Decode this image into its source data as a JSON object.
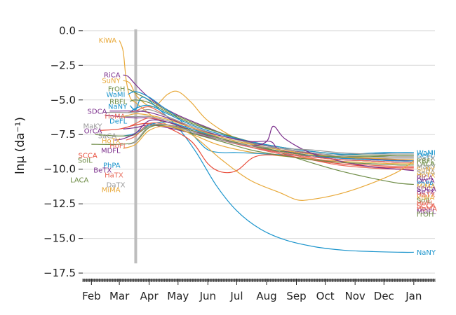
{
  "chart_data": {
    "type": "line",
    "title": "",
    "ylabel": "lnμ (da⁻¹)",
    "xlabel": "",
    "xlim": [
      "2020-01-23",
      "2021-01-23"
    ],
    "ylim": [
      -17.9,
      0.7
    ],
    "yticks": [
      0.0,
      -2.5,
      -5.0,
      -7.5,
      -10.0,
      -12.5,
      -15.0,
      -17.5
    ],
    "ytick_labels": [
      "0.0",
      "−2.5",
      "−5.0",
      "−7.5",
      "−10.0",
      "−12.5",
      "−15.0",
      "−17.5"
    ],
    "xticks": [
      "2020-02-01",
      "2020-03-01",
      "2020-04-01",
      "2020-05-01",
      "2020-06-01",
      "2020-07-01",
      "2020-08-01",
      "2020-09-01",
      "2020-10-01",
      "2020-11-01",
      "2020-12-01",
      "2021-01-01"
    ],
    "xtick_labels": [
      "Feb",
      "Mar",
      "Apr",
      "May",
      "Jun",
      "Jul",
      "Aug",
      "Sep",
      "Oct",
      "Nov",
      "Dec",
      "Jan"
    ],
    "grid": "horizontal",
    "vertical_marker": "2020-03-18",
    "series": [
      {
        "name": "KiWA",
        "color": "#e8a838",
        "x": [
          "2020-03-01",
          "2020-03-05",
          "2020-03-08",
          "2020-03-12",
          "2020-03-18",
          "2020-03-25",
          "2020-04-05",
          "2020-04-20",
          "2020-05-10",
          "2020-06-10",
          "2020-07-10",
          "2020-08-10",
          "2020-09-10",
          "2020-10-10",
          "2020-11-10",
          "2020-12-10",
          "2021-01-01"
        ],
        "y": [
          -0.7,
          -1.5,
          -3.5,
          -4.8,
          -5.2,
          -5.6,
          -6.2,
          -6.8,
          -7.3,
          -8.2,
          -8.7,
          -9.0,
          -9.2,
          -9.4,
          -9.5,
          -9.6,
          -9.6
        ]
      },
      {
        "name": "RiCA",
        "color": "#7b2f8c",
        "x": [
          "2020-03-05",
          "2020-03-10",
          "2020-03-18",
          "2020-03-28",
          "2020-04-10",
          "2020-05-01",
          "2020-06-01",
          "2020-07-01",
          "2020-08-01",
          "2020-09-01",
          "2020-10-01",
          "2020-11-01",
          "2020-12-01",
          "2021-01-01"
        ],
        "y": [
          -3.2,
          -3.3,
          -3.9,
          -4.6,
          -5.3,
          -6.1,
          -7.0,
          -7.8,
          -8.3,
          -8.7,
          -9.0,
          -9.2,
          -9.3,
          -9.4
        ]
      },
      {
        "name": "SuNY",
        "color": "#e8a838",
        "x": [
          "2020-03-05",
          "2020-03-12",
          "2020-03-20",
          "2020-04-05",
          "2020-04-20",
          "2020-05-01",
          "2020-05-15",
          "2020-06-01",
          "2020-07-01",
          "2020-08-01",
          "2020-09-01",
          "2020-10-01",
          "2020-11-01",
          "2020-12-01",
          "2021-01-01"
        ],
        "y": [
          -3.6,
          -3.8,
          -4.8,
          -5.5,
          -4.6,
          -4.4,
          -5.2,
          -6.5,
          -7.8,
          -8.5,
          -8.9,
          -9.1,
          -9.2,
          -9.2,
          -9.2
        ]
      },
      {
        "name": "FrOH",
        "color": "#6e8c46",
        "x": [
          "2020-03-10",
          "2020-03-18",
          "2020-04-01",
          "2020-04-20",
          "2020-05-15",
          "2020-06-15",
          "2020-07-15",
          "2020-08-15",
          "2020-09-15",
          "2020-10-15",
          "2020-11-15",
          "2020-12-15",
          "2021-01-01"
        ],
        "y": [
          -4.2,
          -4.5,
          -5.0,
          -5.8,
          -6.6,
          -7.4,
          -8.1,
          -8.8,
          -9.5,
          -10.1,
          -10.6,
          -11.0,
          -11.1
        ]
      },
      {
        "name": "WaMI",
        "color": "#1a94cc",
        "x": [
          "2020-03-10",
          "2020-03-18",
          "2020-04-01",
          "2020-04-15",
          "2020-05-01",
          "2020-05-20",
          "2020-06-01",
          "2020-06-15",
          "2020-07-01",
          "2020-08-01",
          "2020-09-01",
          "2020-10-01",
          "2020-11-01",
          "2020-12-01",
          "2021-01-01"
        ],
        "y": [
          -4.6,
          -4.4,
          -4.8,
          -5.5,
          -6.3,
          -7.8,
          -8.6,
          -8.8,
          -8.8,
          -8.9,
          -9.0,
          -9.0,
          -8.9,
          -8.8,
          -8.8
        ]
      },
      {
        "name": "RBFL",
        "color": "#6e8c46",
        "x": [
          "2020-03-12",
          "2020-03-18",
          "2020-04-01",
          "2020-04-20",
          "2020-05-15",
          "2020-06-15",
          "2020-07-15",
          "2020-08-15",
          "2020-09-15",
          "2020-10-15",
          "2020-11-15",
          "2020-12-15",
          "2021-01-01"
        ],
        "y": [
          -5.1,
          -5.0,
          -5.2,
          -5.9,
          -6.7,
          -7.4,
          -8.0,
          -8.4,
          -8.7,
          -8.9,
          -9.0,
          -9.0,
          -9.0
        ]
      },
      {
        "name": "NaNY",
        "color": "#1a94cc",
        "x": [
          "2020-03-12",
          "2020-03-18",
          "2020-03-25",
          "2020-04-10",
          "2020-05-01",
          "2020-05-20",
          "2020-06-10",
          "2020-07-01",
          "2020-07-25",
          "2020-08-20",
          "2020-09-20",
          "2020-10-20",
          "2020-11-20",
          "2020-12-20",
          "2021-01-01"
        ],
        "y": [
          -5.4,
          -5.7,
          -4.8,
          -5.6,
          -7.0,
          -8.8,
          -11.2,
          -13.0,
          -14.3,
          -15.1,
          -15.6,
          -15.85,
          -15.95,
          -16.0,
          -16.0
        ]
      },
      {
        "name": "HoMA",
        "color": "#e86a5a",
        "x": [
          "2020-03-10",
          "2020-03-18",
          "2020-04-01",
          "2020-04-20",
          "2020-05-15",
          "2020-06-15",
          "2020-07-15",
          "2020-08-15",
          "2020-09-15",
          "2020-10-15",
          "2020-11-15",
          "2020-12-15",
          "2021-01-01"
        ],
        "y": [
          -5.9,
          -5.8,
          -5.5,
          -6.2,
          -7.0,
          -7.8,
          -8.4,
          -8.9,
          -9.3,
          -9.7,
          -9.9,
          -10.0,
          -10.0
        ]
      },
      {
        "name": "DeFL",
        "color": "#1a94cc",
        "x": [
          "2020-03-12",
          "2020-03-18",
          "2020-04-01",
          "2020-04-20",
          "2020-05-15",
          "2020-06-15",
          "2020-07-15",
          "2020-08-15",
          "2020-09-15",
          "2020-10-15",
          "2020-11-15",
          "2020-12-15",
          "2021-01-01"
        ],
        "y": [
          -5.9,
          -5.6,
          -5.4,
          -6.0,
          -6.8,
          -7.5,
          -8.0,
          -8.4,
          -8.7,
          -8.9,
          -8.9,
          -8.8,
          -8.8
        ]
      },
      {
        "name": "MaKY",
        "color": "#999999",
        "x": [
          "2020-02-15",
          "2020-03-01",
          "2020-03-18",
          "2020-04-01",
          "2020-04-20",
          "2020-05-15",
          "2020-06-15",
          "2020-07-15",
          "2020-08-15",
          "2020-09-15",
          "2020-10-15",
          "2020-11-15",
          "2020-12-15",
          "2021-01-01"
        ],
        "y": [
          -5.9,
          -5.9,
          -5.9,
          -5.7,
          -6.2,
          -6.9,
          -7.6,
          -8.1,
          -8.5,
          -8.8,
          -9.0,
          -9.1,
          -9.1,
          -9.1
        ]
      },
      {
        "name": "SDCA",
        "color": "#7b2f8c",
        "x": [
          "2020-02-20",
          "2020-03-01",
          "2020-03-18",
          "2020-04-01",
          "2020-04-20",
          "2020-05-15",
          "2020-06-15",
          "2020-07-15",
          "2020-08-05",
          "2020-08-15",
          "2020-09-15",
          "2020-10-15",
          "2020-11-15",
          "2020-12-15",
          "2021-01-01"
        ],
        "y": [
          -5.8,
          -5.8,
          -5.8,
          -5.9,
          -6.3,
          -7.0,
          -7.6,
          -8.0,
          -8.0,
          -8.6,
          -9.0,
          -9.3,
          -9.4,
          -9.5,
          -9.5
        ]
      },
      {
        "name": "OrCA",
        "color": "#7b2f8c",
        "x": [
          "2020-02-15",
          "2020-03-01",
          "2020-03-18",
          "2020-04-01",
          "2020-04-20",
          "2020-05-15",
          "2020-06-15",
          "2020-07-15",
          "2020-08-15",
          "2020-09-15",
          "2020-10-15",
          "2020-11-15",
          "2020-12-15",
          "2021-01-01"
        ],
        "y": [
          -6.1,
          -6.2,
          -6.3,
          -6.3,
          -6.6,
          -7.2,
          -7.8,
          -8.3,
          -8.7,
          -9.0,
          -9.2,
          -9.3,
          -9.4,
          -9.4
        ]
      },
      {
        "name": "SaCA",
        "color": "#999999",
        "x": [
          "2020-03-01",
          "2020-03-18",
          "2020-04-01",
          "2020-04-20",
          "2020-05-15",
          "2020-06-15",
          "2020-07-15",
          "2020-08-15",
          "2020-09-15",
          "2020-10-15",
          "2020-11-15",
          "2020-12-15",
          "2021-01-01"
        ],
        "y": [
          -6.2,
          -6.2,
          -6.2,
          -6.5,
          -7.1,
          -7.7,
          -8.2,
          -8.6,
          -8.9,
          -9.1,
          -9.2,
          -9.2,
          -9.2
        ]
      },
      {
        "name": "HoTX",
        "color": "#e8a838",
        "x": [
          "2020-03-05",
          "2020-03-18",
          "2020-04-01",
          "2020-04-20",
          "2020-05-15",
          "2020-06-15",
          "2020-07-15",
          "2020-08-15",
          "2020-09-15",
          "2020-10-15",
          "2020-11-15",
          "2020-12-15",
          "2021-01-01"
        ],
        "y": [
          -6.2,
          -6.0,
          -6.1,
          -6.4,
          -7.0,
          -7.7,
          -8.2,
          -8.6,
          -8.9,
          -9.1,
          -9.2,
          -9.3,
          -9.3
        ]
      },
      {
        "name": "HoFL",
        "color": "#e86a5a",
        "x": [
          "2020-03-12",
          "2020-03-18",
          "2020-04-01",
          "2020-04-20",
          "2020-05-15",
          "2020-06-15",
          "2020-07-15",
          "2020-08-15",
          "2020-09-15",
          "2020-10-15",
          "2020-11-15",
          "2020-12-15",
          "2021-01-01"
        ],
        "y": [
          -6.9,
          -6.7,
          -6.3,
          -6.6,
          -7.2,
          -7.8,
          -8.3,
          -8.8,
          -9.2,
          -9.5,
          -9.7,
          -9.8,
          -9.8
        ]
      },
      {
        "name": "SCCA",
        "color": "#e84c3a",
        "x": [
          "2020-02-10",
          "2020-03-01",
          "2020-03-18",
          "2020-04-01",
          "2020-04-20",
          "2020-05-15",
          "2020-06-01",
          "2020-06-15",
          "2020-07-01",
          "2020-07-20",
          "2020-08-15",
          "2020-09-15",
          "2020-10-15",
          "2020-11-15",
          "2020-12-15",
          "2021-01-01"
        ],
        "y": [
          -7.2,
          -7.1,
          -6.8,
          -6.7,
          -7.0,
          -8.0,
          -9.6,
          -10.2,
          -10.1,
          -9.1,
          -9.0,
          -9.3,
          -9.6,
          -9.8,
          -9.9,
          -9.9
        ]
      },
      {
        "name": "MDFL",
        "color": "#7b2f8c",
        "x": [
          "2020-03-05",
          "2020-03-18",
          "2020-04-01",
          "2020-04-20",
          "2020-05-15",
          "2020-06-15",
          "2020-07-15",
          "2020-08-01",
          "2020-08-08",
          "2020-08-20",
          "2020-09-15",
          "2020-10-15",
          "2020-11-15",
          "2020-12-15",
          "2021-01-01"
        ],
        "y": [
          -7.1,
          -7.0,
          -6.8,
          -7.0,
          -7.4,
          -7.9,
          -8.3,
          -8.0,
          -6.9,
          -7.8,
          -8.8,
          -9.4,
          -9.8,
          -10.0,
          -10.1
        ]
      },
      {
        "name": "PhPA",
        "color": "#1a94cc",
        "x": [
          "2020-03-05",
          "2020-03-18",
          "2020-04-01",
          "2020-04-20",
          "2020-05-15",
          "2020-06-15",
          "2020-07-15",
          "2020-08-15",
          "2020-09-15",
          "2020-10-15",
          "2020-11-15",
          "2020-12-15",
          "2021-01-01"
        ],
        "y": [
          -7.6,
          -7.4,
          -6.8,
          -6.6,
          -7.1,
          -7.8,
          -8.3,
          -8.7,
          -9.0,
          -9.2,
          -9.3,
          -9.4,
          -9.4
        ]
      },
      {
        "name": "SoIL",
        "color": "#6e8c46",
        "x": [
          "2020-02-05",
          "2020-03-01",
          "2020-03-18",
          "2020-04-01",
          "2020-04-20",
          "2020-05-15",
          "2020-06-15",
          "2020-07-15",
          "2020-08-15",
          "2020-09-15",
          "2020-10-15",
          "2020-11-15",
          "2020-12-15",
          "2021-01-01"
        ],
        "y": [
          -7.5,
          -7.6,
          -7.5,
          -6.9,
          -6.9,
          -7.4,
          -8.0,
          -8.6,
          -9.0,
          -9.3,
          -9.5,
          -9.6,
          -9.7,
          -9.7
        ]
      },
      {
        "name": "BeTX",
        "color": "#7b2f8c",
        "x": [
          "2020-02-25",
          "2020-03-05",
          "2020-03-18",
          "2020-04-01",
          "2020-04-20",
          "2020-05-15",
          "2020-06-15",
          "2020-07-15",
          "2020-08-15",
          "2020-09-15",
          "2020-10-15",
          "2020-11-15",
          "2020-12-15",
          "2021-01-01"
        ],
        "y": [
          -7.9,
          -7.8,
          -7.4,
          -6.5,
          -6.6,
          -7.2,
          -7.9,
          -8.4,
          -8.8,
          -9.1,
          -9.3,
          -9.4,
          -9.5,
          -9.5
        ]
      },
      {
        "name": "HaTX",
        "color": "#e86a5a",
        "x": [
          "2020-03-08",
          "2020-03-18",
          "2020-04-01",
          "2020-04-20",
          "2020-05-15",
          "2020-06-15",
          "2020-07-15",
          "2020-08-15",
          "2020-09-15",
          "2020-10-15",
          "2020-11-15",
          "2020-12-15",
          "2021-01-01"
        ],
        "y": [
          -7.9,
          -7.6,
          -6.7,
          -6.8,
          -7.3,
          -7.9,
          -8.4,
          -8.8,
          -9.1,
          -9.3,
          -9.4,
          -9.5,
          -9.5
        ]
      },
      {
        "name": "LACA",
        "color": "#6e8c46",
        "x": [
          "2020-02-01",
          "2020-03-01",
          "2020-03-18",
          "2020-04-01",
          "2020-04-20",
          "2020-05-15",
          "2020-06-15",
          "2020-07-15",
          "2020-08-15",
          "2020-09-15",
          "2020-10-15",
          "2020-11-15",
          "2020-12-15",
          "2021-01-01"
        ],
        "y": [
          -8.2,
          -8.2,
          -8.0,
          -7.0,
          -6.8,
          -7.2,
          -7.8,
          -8.3,
          -8.7,
          -9.0,
          -9.1,
          -9.1,
          -9.0,
          -9.0
        ]
      },
      {
        "name": "DaTX",
        "color": "#999999",
        "x": [
          "2020-03-10",
          "2020-03-18",
          "2020-04-01",
          "2020-04-20",
          "2020-05-15",
          "2020-06-15",
          "2020-07-15",
          "2020-08-15",
          "2020-09-15",
          "2020-10-15",
          "2020-11-15",
          "2020-12-15",
          "2021-01-01"
        ],
        "y": [
          -8.2,
          -8.0,
          -6.9,
          -6.8,
          -7.3,
          -7.9,
          -8.3,
          -8.5,
          -8.6,
          -8.8,
          -8.9,
          -8.9,
          -8.9
        ]
      },
      {
        "name": "MiMA",
        "color": "#e8a838",
        "x": [
          "2020-03-05",
          "2020-03-18",
          "2020-04-01",
          "2020-04-20",
          "2020-05-15",
          "2020-06-15",
          "2020-07-15",
          "2020-08-15",
          "2020-09-01",
          "2020-09-15",
          "2020-10-15",
          "2020-11-15",
          "2020-12-15",
          "2021-01-01"
        ],
        "y": [
          -8.5,
          -8.2,
          -7.2,
          -6.9,
          -7.5,
          -9.3,
          -10.8,
          -11.7,
          -12.2,
          -12.2,
          -11.8,
          -11.1,
          -10.2,
          -9.4
        ]
      }
    ]
  }
}
